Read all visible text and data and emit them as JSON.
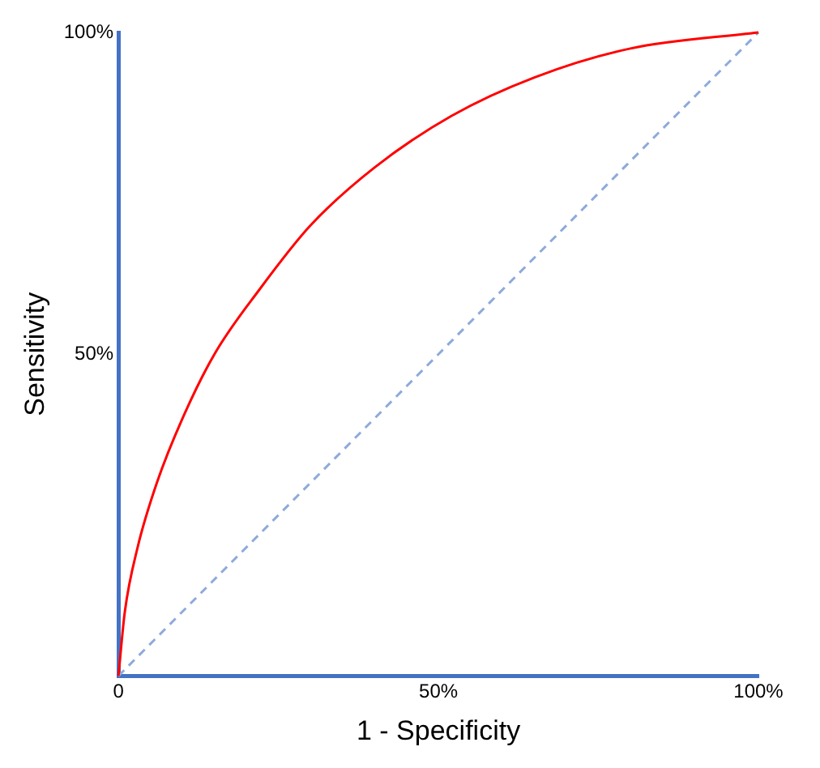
{
  "chart_data": {
    "type": "line",
    "xlabel": "1 - Specificity",
    "ylabel": "Sensitivity",
    "xlim": [
      0,
      100
    ],
    "ylim": [
      0,
      100
    ],
    "xticks": [
      {
        "value": 0,
        "label": "0"
      },
      {
        "value": 50,
        "label": "50%"
      },
      {
        "value": 100,
        "label": "100%"
      }
    ],
    "yticks": [
      {
        "value": 0,
        "label": null
      },
      {
        "value": 50,
        "label": "50%"
      },
      {
        "value": 100,
        "label": "100%"
      }
    ],
    "grid": false,
    "legend": false,
    "marker": "none",
    "series": [
      {
        "color": "#ff0000",
        "line_style": "solid",
        "x": [
          0,
          1,
          3,
          6,
          10,
          15,
          22,
          30,
          40,
          52,
          65,
          80,
          100
        ],
        "values": [
          0,
          10,
          20,
          30,
          40,
          50,
          60,
          70,
          79,
          87,
          93,
          97.5,
          100
        ]
      },
      {
        "color": "#8eaadb",
        "line_style": "dashed",
        "x": [
          0,
          100
        ],
        "values": [
          0,
          100
        ]
      }
    ]
  }
}
